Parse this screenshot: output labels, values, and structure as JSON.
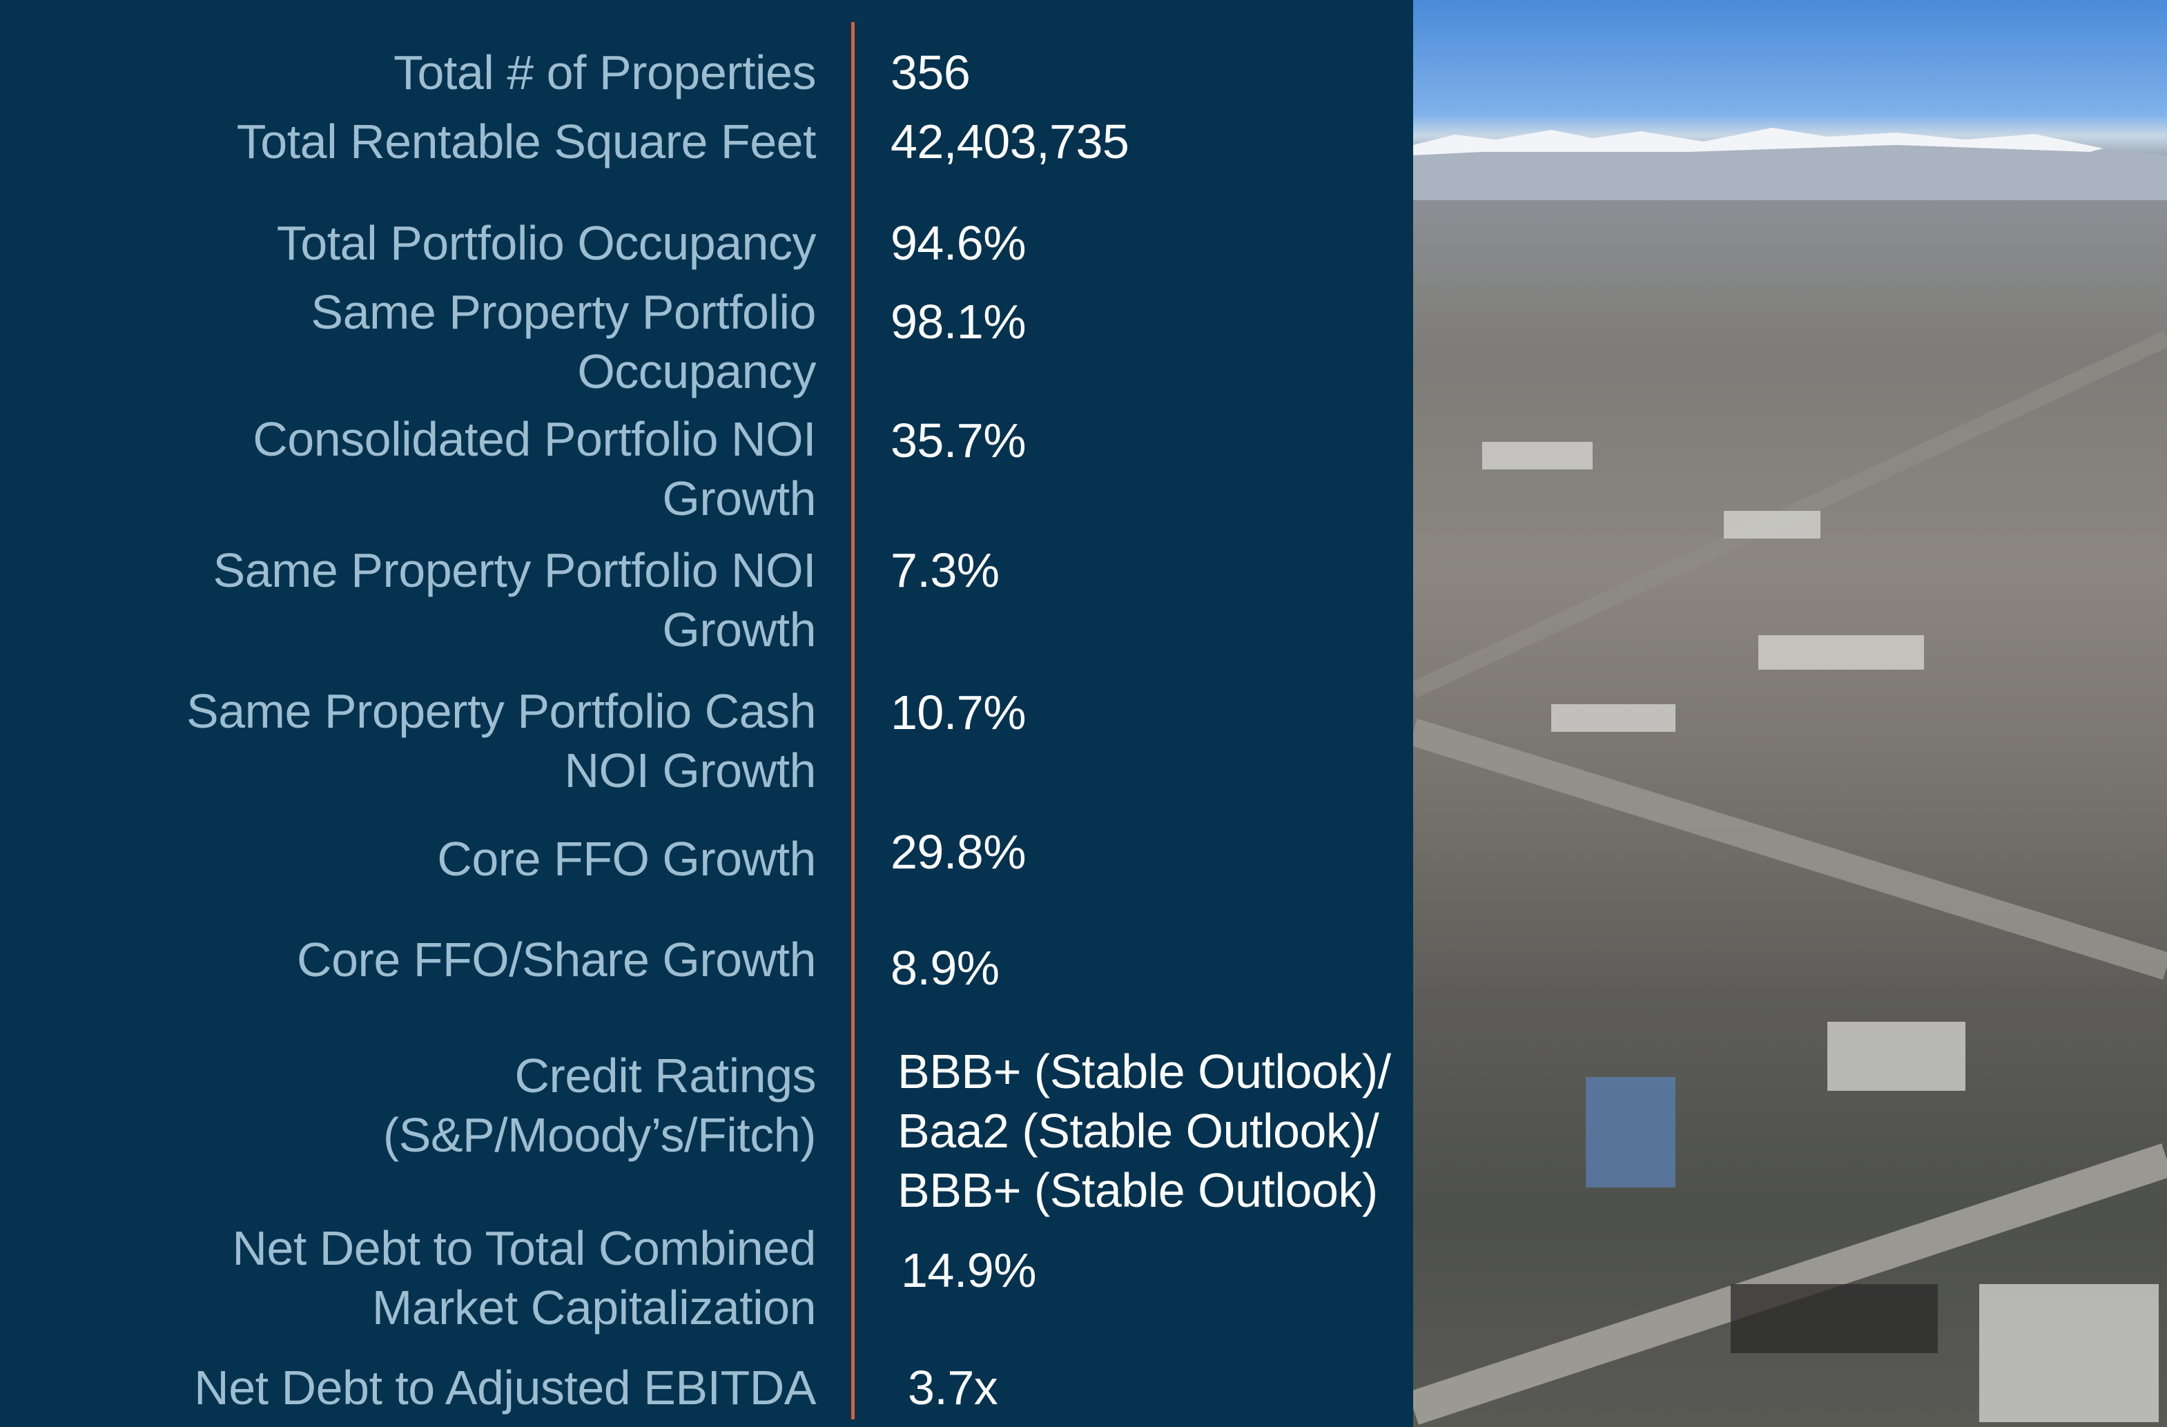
{
  "metrics": [
    {
      "label": "Total # of Properties",
      "value": "356"
    },
    {
      "label": "Total Rentable Square Feet",
      "value": "42,403,735"
    },
    {
      "label": "Total Portfolio Occupancy",
      "value": "94.6%"
    },
    {
      "label": "Same Property Portfolio\nOccupancy",
      "value": "98.1%"
    },
    {
      "label": "Consolidated Portfolio NOI\nGrowth",
      "value": "35.7%"
    },
    {
      "label": "Same Property Portfolio NOI\nGrowth",
      "value": "7.3%"
    },
    {
      "label": "Same Property Portfolio Cash\nNOI Growth",
      "value": "10.7%"
    },
    {
      "label": "Core FFO Growth",
      "value": "29.8%"
    },
    {
      "label": "Core FFO/Share Growth",
      "value": "8.9%"
    },
    {
      "label": "Credit Ratings\n(S&P/Moody’s/Fitch)",
      "value": "BBB+ (Stable Outlook)/\nBaa2 (Stable Outlook)/\nBBB+ (Stable Outlook)"
    },
    {
      "label": "Net Debt to Total Combined\nMarket Capitalization",
      "value": "14.9%"
    },
    {
      "label": "Net Debt to Adjusted EBITDA",
      "value": "3.7x"
    }
  ],
  "colors": {
    "background": "#05324f",
    "label": "#9dbdd0",
    "value": "#ffffff",
    "divider": "#d9603a"
  },
  "image": {
    "subject": "aerial-photo-industrial-city"
  }
}
